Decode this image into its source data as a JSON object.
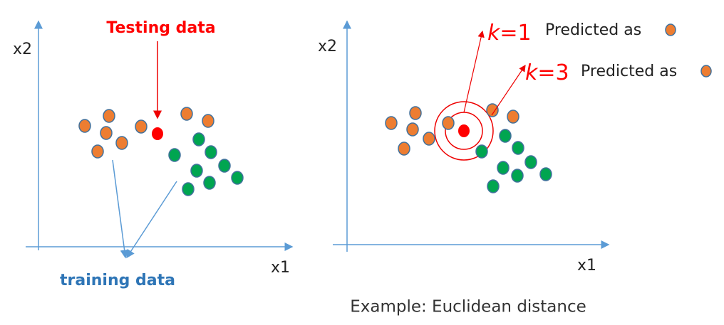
{
  "left_panel": {
    "x_axis": "x1",
    "y_axis": "x2",
    "testing_label": "Testing data",
    "training_label": "training data"
  },
  "right_panel": {
    "x_axis": "x1",
    "y_axis": "x2",
    "k1": {
      "symbol": "k",
      "rest": "=1",
      "prediction": "Predicted as"
    },
    "k3": {
      "symbol": "k",
      "rest": "=3",
      "prediction": "Predicted as"
    }
  },
  "caption": "Example: Euclidean distance"
}
